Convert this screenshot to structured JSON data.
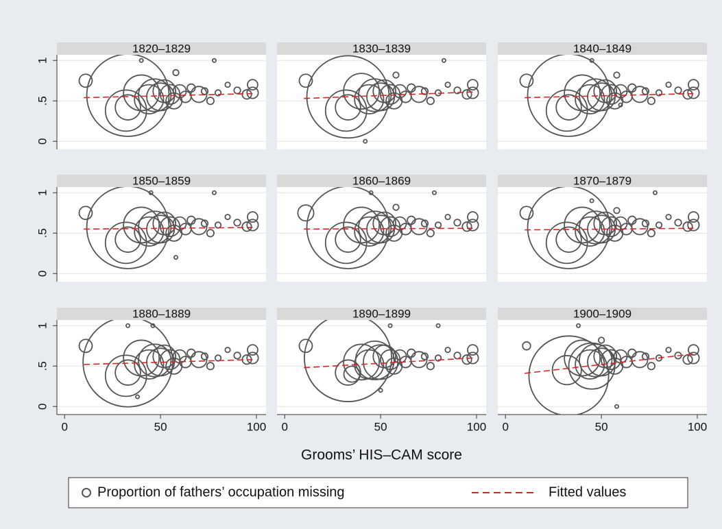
{
  "chart_data": [
    {
      "type": "scatter",
      "title": "1820–1829",
      "xlim": [
        -4,
        105
      ],
      "ylim": [
        -0.1,
        1.07
      ],
      "yticks": [
        0,
        {
          "value": 0.5,
          "label": ".5"
        },
        1
      ],
      "series": [
        {
          "name": "Proportion of fathers’ occupation missing",
          "color": "#555555",
          "x": [
            11,
            33,
            33,
            32,
            40,
            44,
            47,
            50,
            52,
            55,
            57,
            60,
            63,
            66,
            70,
            73,
            76,
            80,
            85,
            90,
            95,
            98,
            98,
            40,
            78,
            58
          ],
          "values": [
            0.75,
            0.57,
            0.42,
            0.38,
            0.6,
            0.52,
            0.57,
            0.55,
            0.62,
            0.58,
            0.5,
            0.62,
            0.55,
            0.66,
            0.58,
            0.62,
            0.5,
            0.6,
            0.7,
            0.63,
            0.58,
            0.7,
            0.6,
            1,
            1,
            0.85
          ],
          "sizes": [
            40,
            1600,
            150,
            400,
            300,
            200,
            250,
            180,
            120,
            90,
            60,
            40,
            30,
            15,
            60,
            10,
            12,
            8,
            6,
            10,
            20,
            25,
            30,
            3,
            3,
            8
          ]
        },
        {
          "name": "Fitted values",
          "type": "line",
          "color": "#d62728",
          "x": [
            10,
            98
          ],
          "values": [
            0.54,
            0.59
          ]
        }
      ]
    },
    {
      "type": "scatter",
      "title": "1830–1839",
      "xlim": [
        -4,
        105
      ],
      "ylim": [
        -0.1,
        1.07
      ],
      "yticks": [
        0,
        0.5,
        1
      ],
      "series": [
        {
          "color": "#555555",
          "x": [
            11,
            33,
            33,
            32,
            40,
            44,
            47,
            50,
            52,
            55,
            57,
            60,
            63,
            66,
            70,
            73,
            76,
            80,
            85,
            90,
            95,
            98,
            98,
            42,
            83,
            58
          ],
          "values": [
            0.75,
            0.55,
            0.42,
            0.38,
            0.62,
            0.52,
            0.57,
            0.55,
            0.62,
            0.58,
            0.5,
            0.62,
            0.55,
            0.66,
            0.58,
            0.62,
            0.5,
            0.6,
            0.7,
            0.63,
            0.58,
            0.7,
            0.6,
            0,
            1,
            0.82
          ],
          "sizes": [
            40,
            1600,
            150,
            400,
            300,
            200,
            250,
            180,
            120,
            90,
            60,
            40,
            30,
            15,
            60,
            10,
            12,
            8,
            6,
            10,
            20,
            25,
            30,
            3,
            3,
            8
          ]
        },
        {
          "type": "line",
          "color": "#d62728",
          "x": [
            10,
            98
          ],
          "values": [
            0.53,
            0.61
          ]
        }
      ]
    },
    {
      "type": "scatter",
      "title": "1840–1849",
      "xlim": [
        -4,
        105
      ],
      "ylim": [
        -0.1,
        1.07
      ],
      "yticks": [
        0,
        0.5,
        1
      ],
      "series": [
        {
          "color": "#555555",
          "x": [
            11,
            33,
            33,
            32,
            40,
            44,
            47,
            50,
            52,
            55,
            57,
            60,
            63,
            66,
            70,
            73,
            76,
            80,
            85,
            90,
            95,
            98,
            98,
            45,
            60,
            58
          ],
          "values": [
            0.75,
            0.57,
            0.42,
            0.38,
            0.6,
            0.52,
            0.57,
            0.55,
            0.62,
            0.58,
            0.5,
            0.62,
            0.55,
            0.66,
            0.58,
            0.62,
            0.5,
            0.6,
            0.7,
            0.63,
            0.58,
            0.7,
            0.6,
            1,
            0.45,
            0.82
          ],
          "sizes": [
            40,
            1600,
            150,
            400,
            300,
            200,
            250,
            180,
            120,
            90,
            60,
            40,
            30,
            15,
            60,
            10,
            12,
            8,
            6,
            10,
            20,
            25,
            30,
            3,
            3,
            8
          ]
        },
        {
          "type": "line",
          "color": "#d62728",
          "x": [
            10,
            98
          ],
          "values": [
            0.54,
            0.59
          ]
        }
      ]
    },
    {
      "type": "scatter",
      "title": "1850–1859",
      "yticks": [
        0,
        {
          "value": 0.5,
          "label": ".5"
        },
        1
      ],
      "xlim": [
        -4,
        105
      ],
      "ylim": [
        -0.1,
        1.07
      ],
      "series": [
        {
          "color": "#555555",
          "x": [
            11,
            33,
            33,
            32,
            40,
            44,
            47,
            50,
            52,
            55,
            57,
            60,
            63,
            66,
            70,
            73,
            76,
            80,
            85,
            90,
            95,
            98,
            98,
            45,
            78,
            58
          ],
          "values": [
            0.75,
            0.57,
            0.42,
            0.38,
            0.6,
            0.52,
            0.57,
            0.55,
            0.62,
            0.58,
            0.5,
            0.62,
            0.55,
            0.66,
            0.58,
            0.62,
            0.5,
            0.6,
            0.7,
            0.63,
            0.58,
            0.7,
            0.6,
            1,
            1,
            0.2
          ],
          "sizes": [
            40,
            1600,
            150,
            400,
            300,
            200,
            250,
            180,
            120,
            90,
            60,
            40,
            30,
            15,
            60,
            10,
            12,
            8,
            6,
            10,
            20,
            25,
            30,
            3,
            3,
            3
          ]
        },
        {
          "type": "line",
          "color": "#d62728",
          "x": [
            10,
            98
          ],
          "values": [
            0.55,
            0.57
          ]
        }
      ]
    },
    {
      "type": "scatter",
      "title": "1860–1869",
      "xlim": [
        -4,
        105
      ],
      "ylim": [
        -0.1,
        1.07
      ],
      "yticks": [
        0,
        0.5,
        1
      ],
      "series": [
        {
          "color": "#555555",
          "x": [
            11,
            33,
            33,
            32,
            40,
            44,
            47,
            50,
            52,
            55,
            57,
            60,
            63,
            66,
            70,
            73,
            76,
            80,
            85,
            90,
            95,
            98,
            98,
            45,
            78,
            58
          ],
          "values": [
            0.75,
            0.57,
            0.42,
            0.38,
            0.6,
            0.52,
            0.57,
            0.55,
            0.62,
            0.58,
            0.5,
            0.62,
            0.55,
            0.66,
            0.58,
            0.62,
            0.5,
            0.6,
            0.7,
            0.63,
            0.58,
            0.7,
            0.6,
            1,
            1,
            0.82
          ],
          "sizes": [
            60,
            1600,
            150,
            400,
            300,
            200,
            250,
            180,
            120,
            90,
            60,
            40,
            30,
            15,
            60,
            10,
            12,
            8,
            6,
            10,
            20,
            25,
            30,
            3,
            3,
            8
          ]
        },
        {
          "type": "line",
          "color": "#d62728",
          "x": [
            10,
            98
          ],
          "values": [
            0.55,
            0.56
          ]
        }
      ]
    },
    {
      "type": "scatter",
      "title": "1870–1879",
      "xlim": [
        -4,
        105
      ],
      "ylim": [
        -0.1,
        1.07
      ],
      "yticks": [
        0,
        0.5,
        1
      ],
      "series": [
        {
          "color": "#555555",
          "x": [
            11,
            33,
            33,
            32,
            40,
            44,
            47,
            50,
            52,
            55,
            57,
            60,
            63,
            66,
            70,
            73,
            76,
            80,
            85,
            90,
            95,
            98,
            98,
            45,
            78,
            58
          ],
          "values": [
            0.75,
            0.57,
            0.42,
            0.38,
            0.6,
            0.52,
            0.57,
            0.55,
            0.62,
            0.58,
            0.5,
            0.62,
            0.55,
            0.66,
            0.58,
            0.62,
            0.5,
            0.6,
            0.7,
            0.63,
            0.58,
            0.7,
            0.6,
            0.9,
            1,
            0.78
          ],
          "sizes": [
            40,
            1600,
            150,
            400,
            300,
            200,
            250,
            180,
            120,
            90,
            60,
            40,
            30,
            15,
            60,
            10,
            12,
            8,
            6,
            10,
            20,
            25,
            30,
            3,
            3,
            8
          ]
        },
        {
          "type": "line",
          "color": "#d62728",
          "x": [
            10,
            98
          ],
          "values": [
            0.54,
            0.56
          ]
        }
      ]
    },
    {
      "type": "scatter",
      "title": "1880–1889",
      "xlim": [
        -4,
        105
      ],
      "ylim": [
        -0.1,
        1.07
      ],
      "yticks": [
        0,
        {
          "value": 0.5,
          "label": ".5"
        },
        1
      ],
      "xticks": [
        0,
        50,
        100
      ],
      "series": [
        {
          "color": "#555555",
          "x": [
            11,
            33,
            33,
            32,
            40,
            44,
            47,
            50,
            52,
            55,
            57,
            60,
            63,
            66,
            70,
            73,
            76,
            80,
            85,
            90,
            95,
            98,
            98,
            33,
            46,
            38
          ],
          "values": [
            0.75,
            0.55,
            0.42,
            0.38,
            0.6,
            0.52,
            0.57,
            0.55,
            0.62,
            0.58,
            0.5,
            0.62,
            0.55,
            0.66,
            0.58,
            0.62,
            0.5,
            0.6,
            0.7,
            0.63,
            0.58,
            0.7,
            0.6,
            1,
            1,
            0.12
          ],
          "sizes": [
            40,
            1900,
            150,
            400,
            300,
            200,
            250,
            180,
            120,
            90,
            60,
            40,
            30,
            15,
            60,
            10,
            12,
            8,
            6,
            10,
            20,
            25,
            30,
            3,
            3,
            3
          ]
        },
        {
          "type": "line",
          "color": "#d62728",
          "x": [
            10,
            98
          ],
          "values": [
            0.52,
            0.58
          ]
        }
      ]
    },
    {
      "type": "scatter",
      "title": "1890–1899",
      "xlabel": "Grooms’ HIS–CAM score",
      "xlim": [
        -4,
        105
      ],
      "ylim": [
        -0.1,
        1.07
      ],
      "yticks": [
        0,
        0.5,
        1
      ],
      "xticks": [
        0,
        50,
        100
      ],
      "series": [
        {
          "color": "#555555",
          "x": [
            11,
            33,
            33,
            35,
            40,
            44,
            47,
            50,
            52,
            55,
            57,
            60,
            63,
            66,
            70,
            73,
            76,
            80,
            85,
            90,
            95,
            98,
            98,
            55,
            80,
            50
          ],
          "values": [
            0.75,
            0.6,
            0.42,
            0.4,
            0.55,
            0.52,
            0.57,
            0.55,
            0.62,
            0.58,
            0.5,
            0.62,
            0.55,
            0.66,
            0.58,
            0.62,
            0.5,
            0.6,
            0.7,
            0.63,
            0.58,
            0.7,
            0.6,
            1,
            1,
            0.2
          ],
          "sizes": [
            40,
            1800,
            150,
            60,
            300,
            200,
            350,
            280,
            120,
            90,
            60,
            40,
            30,
            15,
            60,
            10,
            12,
            8,
            6,
            10,
            20,
            25,
            30,
            3,
            3,
            3
          ]
        },
        {
          "type": "line",
          "color": "#d62728",
          "x": [
            10,
            98
          ],
          "values": [
            0.48,
            0.6
          ]
        }
      ]
    },
    {
      "type": "scatter",
      "title": "1900–1909",
      "xlim": [
        -4,
        105
      ],
      "ylim": [
        -0.1,
        1.07
      ],
      "yticks": [
        0,
        0.5,
        1
      ],
      "xticks": [
        0,
        50,
        100
      ],
      "series": [
        {
          "color": "#555555",
          "x": [
            11,
            33,
            45,
            32,
            40,
            44,
            47,
            50,
            52,
            55,
            57,
            60,
            63,
            66,
            70,
            73,
            76,
            80,
            85,
            90,
            95,
            98,
            98,
            38,
            58,
            50
          ],
          "values": [
            0.75,
            0.38,
            0.5,
            0.45,
            0.6,
            0.52,
            0.57,
            0.55,
            0.62,
            0.58,
            0.5,
            0.62,
            0.55,
            0.66,
            0.58,
            0.62,
            0.5,
            0.6,
            0.7,
            0.63,
            0.58,
            0.7,
            0.6,
            1,
            0,
            0.82
          ],
          "sizes": [
            15,
            1500,
            500,
            200,
            300,
            200,
            250,
            180,
            120,
            90,
            60,
            40,
            30,
            15,
            60,
            10,
            12,
            8,
            6,
            10,
            20,
            25,
            30,
            3,
            3,
            8
          ]
        },
        {
          "type": "line",
          "color": "#d62728",
          "x": [
            10,
            98
          ],
          "values": [
            0.41,
            0.65
          ]
        }
      ]
    }
  ]
}
